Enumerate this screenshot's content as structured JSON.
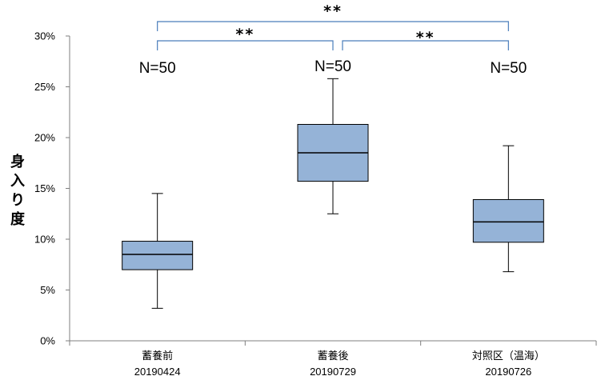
{
  "chart_data": {
    "type": "box",
    "ylabel": "身入り度",
    "ylim": [
      0,
      30
    ],
    "y_ticks": [
      "0%",
      "5%",
      "10%",
      "15%",
      "20%",
      "25%",
      "30%"
    ],
    "categories": [
      {
        "name": "蓄養前",
        "date": "20190424"
      },
      {
        "name": "蓄養後",
        "date": "20190729"
      },
      {
        "name": "対照区（温海）",
        "date": "20190726"
      }
    ],
    "boxes": [
      {
        "min": 3.2,
        "q1": 7.0,
        "median": 8.5,
        "q3": 9.8,
        "max": 14.5,
        "n_label": "N=50"
      },
      {
        "min": 12.5,
        "q1": 15.7,
        "median": 18.5,
        "q3": 21.3,
        "max": 25.8,
        "n_label": "N=50"
      },
      {
        "min": 6.8,
        "q1": 9.7,
        "median": 11.7,
        "q3": 13.9,
        "max": 19.2,
        "n_label": "N=50"
      }
    ],
    "significance": [
      {
        "from": 0,
        "to": 2,
        "label": "**"
      },
      {
        "from": 0,
        "to": 1,
        "label": "**"
      },
      {
        "from": 1,
        "to": 2,
        "label": "**"
      }
    ],
    "colors": {
      "box_fill": "#95b3d7",
      "box_stroke": "#000000",
      "bracket": "#4a7ebb",
      "axis": "#7f7f7f"
    }
  }
}
